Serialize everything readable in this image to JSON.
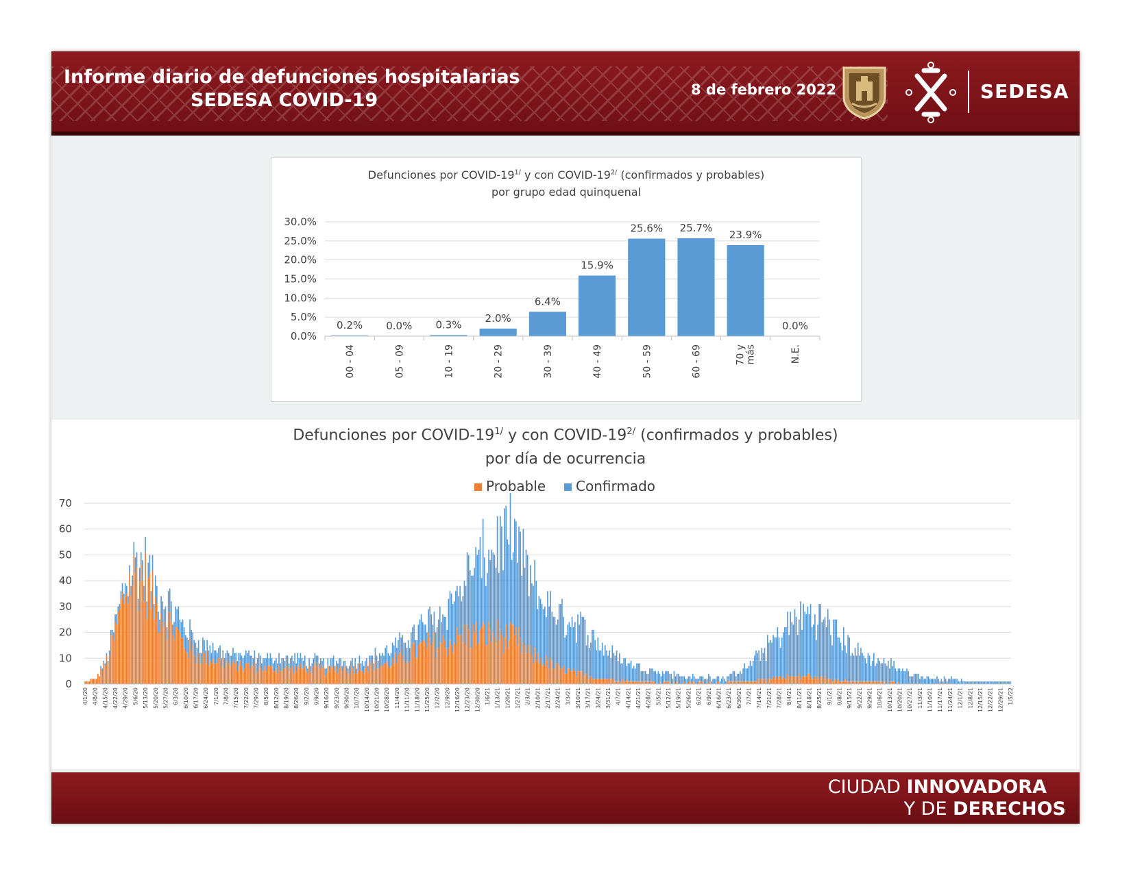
{
  "header": {
    "title_line1": "Informe diario de defunciones hospitalarias",
    "title_line2": "SEDESA COVID-19",
    "date": "8 de febrero 2022",
    "logo_text": "SEDESA",
    "accent_color": "#7c1419"
  },
  "footer": {
    "line1_light": "CIUDAD ",
    "line1_bold": "INNOVADORA",
    "line2_light": "Y DE ",
    "line2_bold": "DERECHOS"
  },
  "chart_data": [
    {
      "type": "bar",
      "title_parts": [
        "Defunciones por COVID-19",
        "1/",
        " y con COVID-19",
        "2/",
        " (confirmados y probables)"
      ],
      "subtitle": "por grupo edad quinquenal",
      "categories": [
        "00 - 04",
        "05 - 09",
        "10 - 19",
        "20 - 29",
        "30 - 39",
        "40 - 49",
        "50 - 59",
        "60 - 69",
        "70 y más",
        "N.E."
      ],
      "values": [
        0.2,
        0.0,
        0.3,
        2.0,
        6.4,
        15.9,
        25.6,
        25.7,
        23.9,
        0.0
      ],
      "data_labels": [
        "0.2%",
        "0.0%",
        "0.3%",
        "2.0%",
        "6.4%",
        "15.9%",
        "25.6%",
        "25.7%",
        "23.9%",
        "0.0%"
      ],
      "y_ticks": [
        "0.0%",
        "5.0%",
        "10.0%",
        "15.0%",
        "20.0%",
        "25.0%",
        "30.0%"
      ],
      "ylim": [
        0,
        30
      ],
      "grid": true,
      "bar_color": "#5b9bd5"
    },
    {
      "type": "bar",
      "stacked": true,
      "title_parts": [
        "Defunciones por COVID-19",
        "1/",
        " y con COVID-19",
        "2/",
        " (confirmados y probables)"
      ],
      "subtitle": "por día de ocurrencia",
      "legend_position": "top",
      "series": [
        {
          "name": "Probable",
          "color": "#ed7d31"
        },
        {
          "name": "Confirmado",
          "color": "#5b9bd5"
        }
      ],
      "x_start": "2020-04-01",
      "x_end": "2022-01-05",
      "x_ticks": [
        "4/1/20",
        "4/8/20",
        "4/15/20",
        "4/22/20",
        "4/29/20",
        "5/6/20",
        "5/13/20",
        "5/20/20",
        "5/27/20",
        "6/3/20",
        "6/10/20",
        "6/17/20",
        "6/24/20",
        "7/1/20",
        "7/8/20",
        "7/15/20",
        "7/22/20",
        "7/29/20",
        "8/5/20",
        "8/12/20",
        "8/19/20",
        "8/26/20",
        "9/2/20",
        "9/9/20",
        "9/16/20",
        "9/23/20",
        "9/30/20",
        "10/7/20",
        "10/14/20",
        "10/21/20",
        "10/28/20",
        "11/4/20",
        "11/11/20",
        "11/18/20",
        "11/25/20",
        "12/2/20",
        "12/9/20",
        "12/16/20",
        "12/23/20",
        "12/30/20",
        "1/6/21",
        "1/13/21",
        "1/20/21",
        "1/27/21",
        "2/3/21",
        "2/10/21",
        "2/17/21",
        "2/24/21",
        "3/3/21",
        "3/10/21",
        "3/17/21",
        "3/24/21",
        "3/31/21",
        "4/7/21",
        "4/14/21",
        "4/21/21",
        "4/28/21",
        "5/5/21",
        "5/12/21",
        "5/19/21",
        "5/26/21",
        "6/2/21",
        "6/9/21",
        "6/16/21",
        "6/23/21",
        "6/30/21",
        "7/7/21",
        "7/14/21",
        "7/21/21",
        "7/28/21",
        "8/4/21",
        "8/11/21",
        "8/18/21",
        "8/25/21",
        "9/1/21",
        "9/8/21",
        "9/15/21",
        "9/22/21",
        "9/29/21",
        "10/6/21",
        "10/13/21",
        "10/20/21",
        "10/27/21",
        "11/3/21",
        "11/10/21",
        "11/17/21",
        "11/24/21",
        "12/1/21",
        "12/8/21",
        "12/15/21",
        "12/22/21",
        "12/29/21",
        "1/5/22"
      ],
      "y_ticks": [
        "0",
        "10",
        "20",
        "30",
        "40",
        "50",
        "60",
        "70"
      ],
      "ylim": [
        0,
        70
      ],
      "grid": true,
      "weekly_avg_date": [
        "4/1/20",
        "4/8/20",
        "4/15/20",
        "4/22/20",
        "4/29/20",
        "5/6/20",
        "5/13/20",
        "5/20/20",
        "5/27/20",
        "6/3/20",
        "6/10/20",
        "6/17/20",
        "6/24/20",
        "7/1/20",
        "7/8/20",
        "7/15/20",
        "7/22/20",
        "7/29/20",
        "8/5/20",
        "8/12/20",
        "8/19/20",
        "8/26/20",
        "9/2/20",
        "9/9/20",
        "9/16/20",
        "9/23/20",
        "9/30/20",
        "10/7/20",
        "10/14/20",
        "10/21/20",
        "10/28/20",
        "11/4/20",
        "11/11/20",
        "11/18/20",
        "11/25/20",
        "12/2/20",
        "12/9/20",
        "12/16/20",
        "12/23/20",
        "12/30/20",
        "1/6/21",
        "1/13/21",
        "1/20/21",
        "1/27/21",
        "2/3/21",
        "2/10/21",
        "2/17/21",
        "2/24/21",
        "3/3/21",
        "3/10/21",
        "3/17/21",
        "3/24/21",
        "3/31/21",
        "4/7/21",
        "4/14/21",
        "4/21/21",
        "4/28/21",
        "5/5/21",
        "5/12/21",
        "5/19/21",
        "5/26/21",
        "6/2/21",
        "6/9/21",
        "6/16/21",
        "6/23/21",
        "6/30/21",
        "7/7/21",
        "7/14/21",
        "7/21/21",
        "7/28/21",
        "8/4/21",
        "8/11/21",
        "8/18/21",
        "8/25/21",
        "9/1/21",
        "9/8/21",
        "9/15/21",
        "9/22/21",
        "9/29/21",
        "10/6/21",
        "10/13/21",
        "10/20/21",
        "10/27/21",
        "11/3/21",
        "11/10/21",
        "11/17/21",
        "11/24/21",
        "12/1/21",
        "12/8/21",
        "12/15/21",
        "12/22/21",
        "12/29/21",
        "1/5/22"
      ],
      "weekly_avg_probable": [
        1,
        2,
        7,
        20,
        36,
        42,
        40,
        30,
        26,
        20,
        15,
        11,
        10,
        9,
        8,
        7,
        7,
        6,
        6,
        6,
        6,
        6,
        6,
        6,
        5,
        6,
        6,
        6,
        7,
        7,
        8,
        9,
        11,
        13,
        15,
        15,
        16,
        17,
        19,
        19,
        19,
        19,
        18,
        17,
        12,
        10,
        8,
        6,
        5,
        4,
        3,
        2.5,
        2,
        1.5,
        1.2,
        1,
        0.8,
        0.6,
        0.5,
        0.5,
        0.5,
        0.5,
        0.5,
        0.5,
        0.6,
        0.8,
        1,
        1.5,
        2,
        2.5,
        3,
        3,
        3,
        2.5,
        2,
        1.5,
        1.2,
        1,
        0.8,
        0.6,
        0.5,
        0.4,
        0.3,
        0.3,
        0.2,
        0.2,
        0.1,
        0.1,
        0.1,
        0.1,
        0.1,
        0.1,
        0.1
      ],
      "weekly_avg_confirmado": [
        0,
        0,
        1,
        3,
        4,
        5,
        6,
        6,
        6,
        7,
        7,
        6,
        5,
        4,
        4,
        4,
        4,
        4,
        4,
        4,
        4,
        4,
        3,
        3,
        3,
        3,
        3,
        3,
        3,
        4,
        5,
        6,
        7,
        8,
        9,
        11,
        14,
        18,
        23,
        28,
        31,
        35,
        38,
        37,
        30,
        25,
        22,
        21,
        20,
        19,
        17,
        14,
        11,
        9,
        7,
        6,
        5,
        4,
        4,
        3,
        2,
        2,
        2,
        2,
        2,
        4,
        6,
        10,
        13,
        16,
        20,
        23,
        24,
        23,
        21,
        17,
        14,
        11,
        9,
        8,
        7,
        6,
        4,
        3,
        2.5,
        2,
        2,
        1.5,
        1,
        1,
        1,
        1,
        1
      ]
    }
  ]
}
